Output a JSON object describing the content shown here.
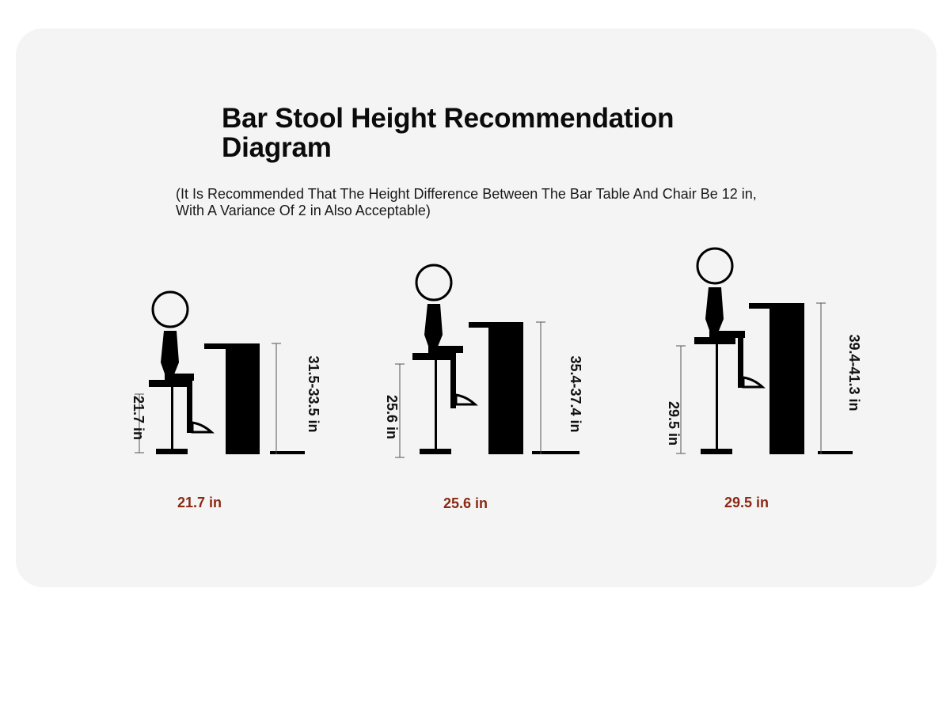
{
  "title": {
    "line1": "Bar Stool Height Recommendation",
    "line2": "Diagram"
  },
  "subtitle": {
    "line1": "(It Is Recommended That The Height Difference Between The Bar Table And Chair Be 12 in,",
    "line2": "With A Variance Of 2 in Also Acceptable)"
  },
  "configs": [
    {
      "seat_height": "21.7 in",
      "table_height": "31.5-33.5 in",
      "caption": "21.7 in"
    },
    {
      "seat_height": "25.6 in",
      "table_height": "35.4-37.4 in",
      "caption": "25.6 in"
    },
    {
      "seat_height": "29.5 in",
      "table_height": "39.4-41.3 in",
      "caption": "29.5 in"
    }
  ],
  "colors": {
    "figure": "#000000",
    "caption": "#8a2a14",
    "card_background": "#f4f4f4"
  }
}
